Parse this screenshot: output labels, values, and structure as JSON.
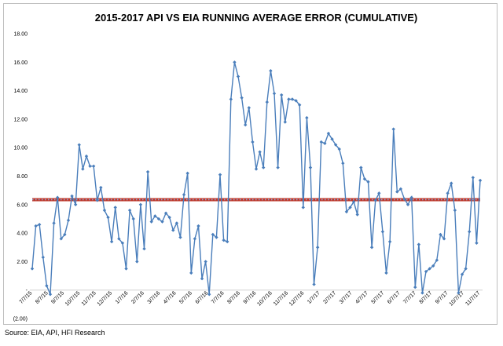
{
  "source": "Source: EIA, API, HFI Research",
  "colors": {
    "series": "#4a7ebb",
    "average": "#c0392b",
    "average_dots": "#8fa8d6"
  },
  "chart_data": {
    "type": "line",
    "title": "2015-2017 API VS EIA RUNNING AVERAGE ERROR (CUMULATIVE)",
    "xlabel": "",
    "ylabel": "",
    "ylim": [
      -2,
      18
    ],
    "y_ticks": [
      -2,
      0,
      2,
      4,
      6,
      8,
      10,
      12,
      14,
      16,
      18
    ],
    "y_tick_labels": [
      "(2.00)",
      "-",
      "2.00",
      "4.00",
      "6.00",
      "8.00",
      "10.00",
      "12.00",
      "14.00",
      "16.00",
      "18.00"
    ],
    "x_tick_labels": [
      "7/7/15",
      "8/7/15",
      "9/7/15",
      "10/7/15",
      "11/7/15",
      "12/7/15",
      "1/7/16",
      "2/7/16",
      "3/7/16",
      "4/7/16",
      "5/7/16",
      "6/7/16",
      "7/7/16",
      "8/7/16",
      "9/7/16",
      "10/7/16",
      "11/7/16",
      "12/7/16",
      "1/7/17",
      "2/7/17",
      "3/7/17",
      "4/7/17",
      "5/7/17",
      "6/7/17",
      "7/7/17",
      "8/7/17",
      "9/7/17",
      "10/7/17",
      "11/7/17"
    ],
    "grid": false,
    "legend": "none",
    "average_line": 6.35,
    "series": [
      {
        "values": [
          1.5,
          4.5,
          4.6,
          2.3,
          0.3,
          -0.3,
          4.7,
          6.5,
          3.6,
          3.9,
          4.9,
          6.6,
          6.0,
          10.2,
          8.5,
          9.4,
          8.7,
          8.7,
          6.3,
          7.2,
          5.6,
          5.1,
          3.4,
          5.8,
          3.6,
          3.3,
          1.5,
          5.6,
          5.0,
          2.0,
          6.0,
          2.9,
          8.3,
          4.8,
          5.2,
          5.0,
          4.8,
          5.4,
          5.1,
          4.2,
          4.7,
          3.7,
          6.7,
          8.2,
          1.2,
          3.6,
          4.5,
          0.8,
          2.0,
          -0.3,
          3.9,
          3.7,
          8.1,
          3.5,
          3.4,
          13.4,
          16.0,
          15.0,
          13.5,
          11.6,
          12.8,
          10.4,
          8.5,
          9.7,
          8.6,
          13.2,
          15.4,
          13.8,
          8.6,
          13.7,
          11.8,
          13.4,
          13.4,
          13.3,
          13.0,
          5.8,
          12.1,
          8.6,
          0.4,
          3.0,
          10.4,
          10.3,
          11.0,
          10.6,
          10.2,
          9.9,
          8.9,
          5.5,
          5.8,
          6.2,
          5.3,
          8.6,
          7.8,
          7.6,
          3.0,
          6.3,
          6.8,
          4.1,
          1.2,
          3.4,
          11.3,
          6.9,
          7.1,
          6.4,
          6.0,
          6.5,
          0.2,
          3.2,
          -0.2,
          1.3,
          1.5,
          1.7,
          2.1,
          3.9,
          3.6,
          6.8,
          7.5,
          5.6,
          -0.2,
          1.1,
          1.5,
          4.1,
          7.9,
          3.3,
          7.7
        ]
      }
    ]
  }
}
